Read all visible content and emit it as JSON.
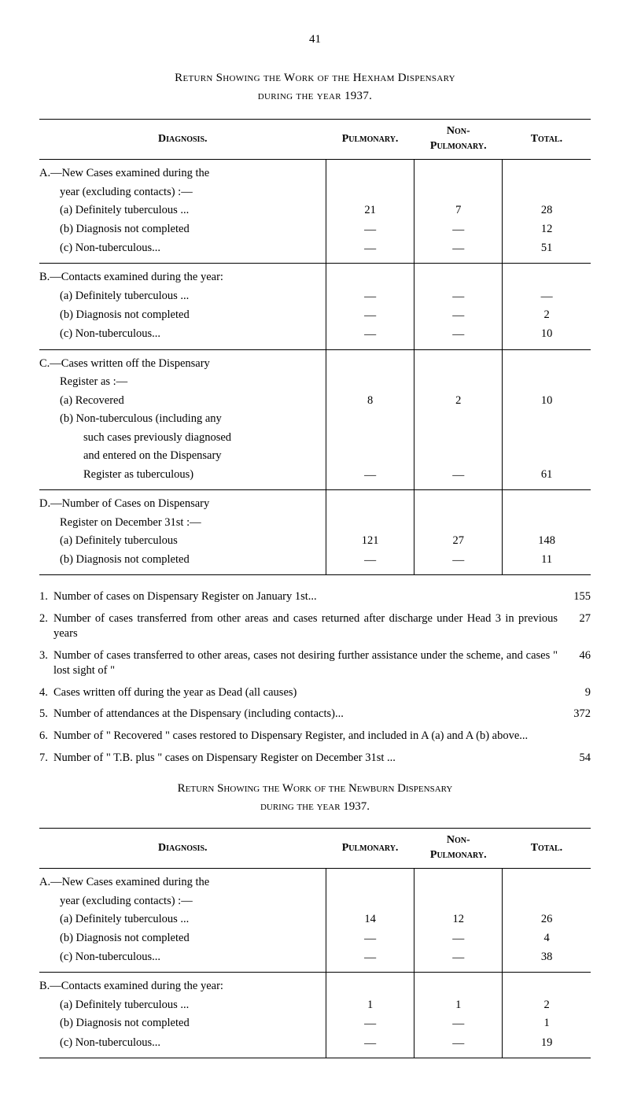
{
  "page_number": "41",
  "main_title_line1": "Return Showing the Work of the Hexham Dispensary",
  "main_title_line2": "during the year 1937.",
  "table1": {
    "headers": {
      "diagnosis": "Diagnosis.",
      "pulmonary": "Pulmonary.",
      "non_pulmonary": "Non-\nPulmonary.",
      "total": "Total."
    },
    "sections": [
      {
        "head": "A.—New Cases examined during the",
        "head2": "year (excluding contacts) :—",
        "rows": [
          {
            "label": "(a) Definitely tuberculous ...",
            "p": "21",
            "np": "7",
            "t": "28"
          },
          {
            "label": "(b) Diagnosis not completed",
            "p": "—",
            "np": "—",
            "t": "12"
          },
          {
            "label": "(c) Non-tuberculous...",
            "p": "—",
            "np": "—",
            "t": "51"
          }
        ]
      },
      {
        "head": "B.—Contacts examined during the year:",
        "rows": [
          {
            "label": "(a) Definitely tuberculous ...",
            "p": "—",
            "np": "—",
            "t": "—"
          },
          {
            "label": "(b) Diagnosis not completed",
            "p": "—",
            "np": "—",
            "t": "2"
          },
          {
            "label": "(c) Non-tuberculous...",
            "p": "—",
            "np": "—",
            "t": "10"
          }
        ]
      },
      {
        "head": "C.—Cases written off the Dispensary",
        "head2": "Register as :—",
        "rows": [
          {
            "label": "(a) Recovered",
            "p": "8",
            "np": "2",
            "t": "10"
          },
          {
            "label": "(b) Non-tuberculous (including any",
            "p": "",
            "np": "",
            "t": ""
          },
          {
            "label_cont": "such cases previously diagnosed",
            "p": "",
            "np": "",
            "t": ""
          },
          {
            "label_cont": "and entered on the Dispensary",
            "p": "",
            "np": "",
            "t": ""
          },
          {
            "label_cont": "Register as tuberculous)",
            "p": "—",
            "np": "—",
            "t": "61"
          }
        ]
      },
      {
        "head": "D.—Number of Cases on Dispensary",
        "head2": "Register on December 31st :—",
        "rows": [
          {
            "label": "(a) Definitely tuberculous",
            "p": "121",
            "np": "27",
            "t": "148"
          },
          {
            "label": "(b) Diagnosis not completed",
            "p": "—",
            "np": "—",
            "t": "11"
          }
        ]
      }
    ]
  },
  "numbered": [
    {
      "n": "1.",
      "text": "Number of cases on Dispensary Register on January 1st...",
      "val": "155"
    },
    {
      "n": "2.",
      "text": "Number of cases transferred from other areas and cases returned after discharge under Head 3 in previous years",
      "val": "27"
    },
    {
      "n": "3.",
      "text": "Number of cases transferred to other areas, cases not desiring further assistance under the scheme, and cases \" lost sight of \"",
      "val": "46"
    },
    {
      "n": "4.",
      "text": "Cases written off during the year as Dead (all causes)",
      "val": "9"
    },
    {
      "n": "5.",
      "text": "Number of attendances at the Dispensary (including contacts)...",
      "val": "372"
    },
    {
      "n": "6.",
      "text": "Number of \" Recovered \" cases restored to Dispensary Register, and included in A (a) and A (b) above...",
      "val": ""
    },
    {
      "n": "7.",
      "text": "Number of \" T.B. plus \" cases on Dispensary Register on December 31st ...",
      "val": "54"
    }
  ],
  "secondary_title_line1": "Return Showing the Work of the Newburn Dispensary",
  "secondary_title_line2": "during the year 1937.",
  "table2": {
    "headers": {
      "diagnosis": "Diagnosis.",
      "pulmonary": "Pulmonary.",
      "non_pulmonary": "Non-\nPulmonary.",
      "total": "Total."
    },
    "sections": [
      {
        "head": "A.—New Cases examined during the",
        "head2": "year (excluding contacts) :—",
        "rows": [
          {
            "label": "(a) Definitely tuberculous ...",
            "p": "14",
            "np": "12",
            "t": "26"
          },
          {
            "label": "(b) Diagnosis not completed",
            "p": "—",
            "np": "—",
            "t": "4"
          },
          {
            "label": "(c) Non-tuberculous...",
            "p": "—",
            "np": "—",
            "t": "38"
          }
        ]
      },
      {
        "head": "B.—Contacts examined during the year:",
        "rows": [
          {
            "label": "(a) Definitely tuberculous ...",
            "p": "1",
            "np": "1",
            "t": "2"
          },
          {
            "label": "(b) Diagnosis not completed",
            "p": "—",
            "np": "—",
            "t": "1"
          },
          {
            "label": "(c) Non-tuberculous...",
            "p": "—",
            "np": "—",
            "t": "19"
          }
        ]
      }
    ]
  }
}
